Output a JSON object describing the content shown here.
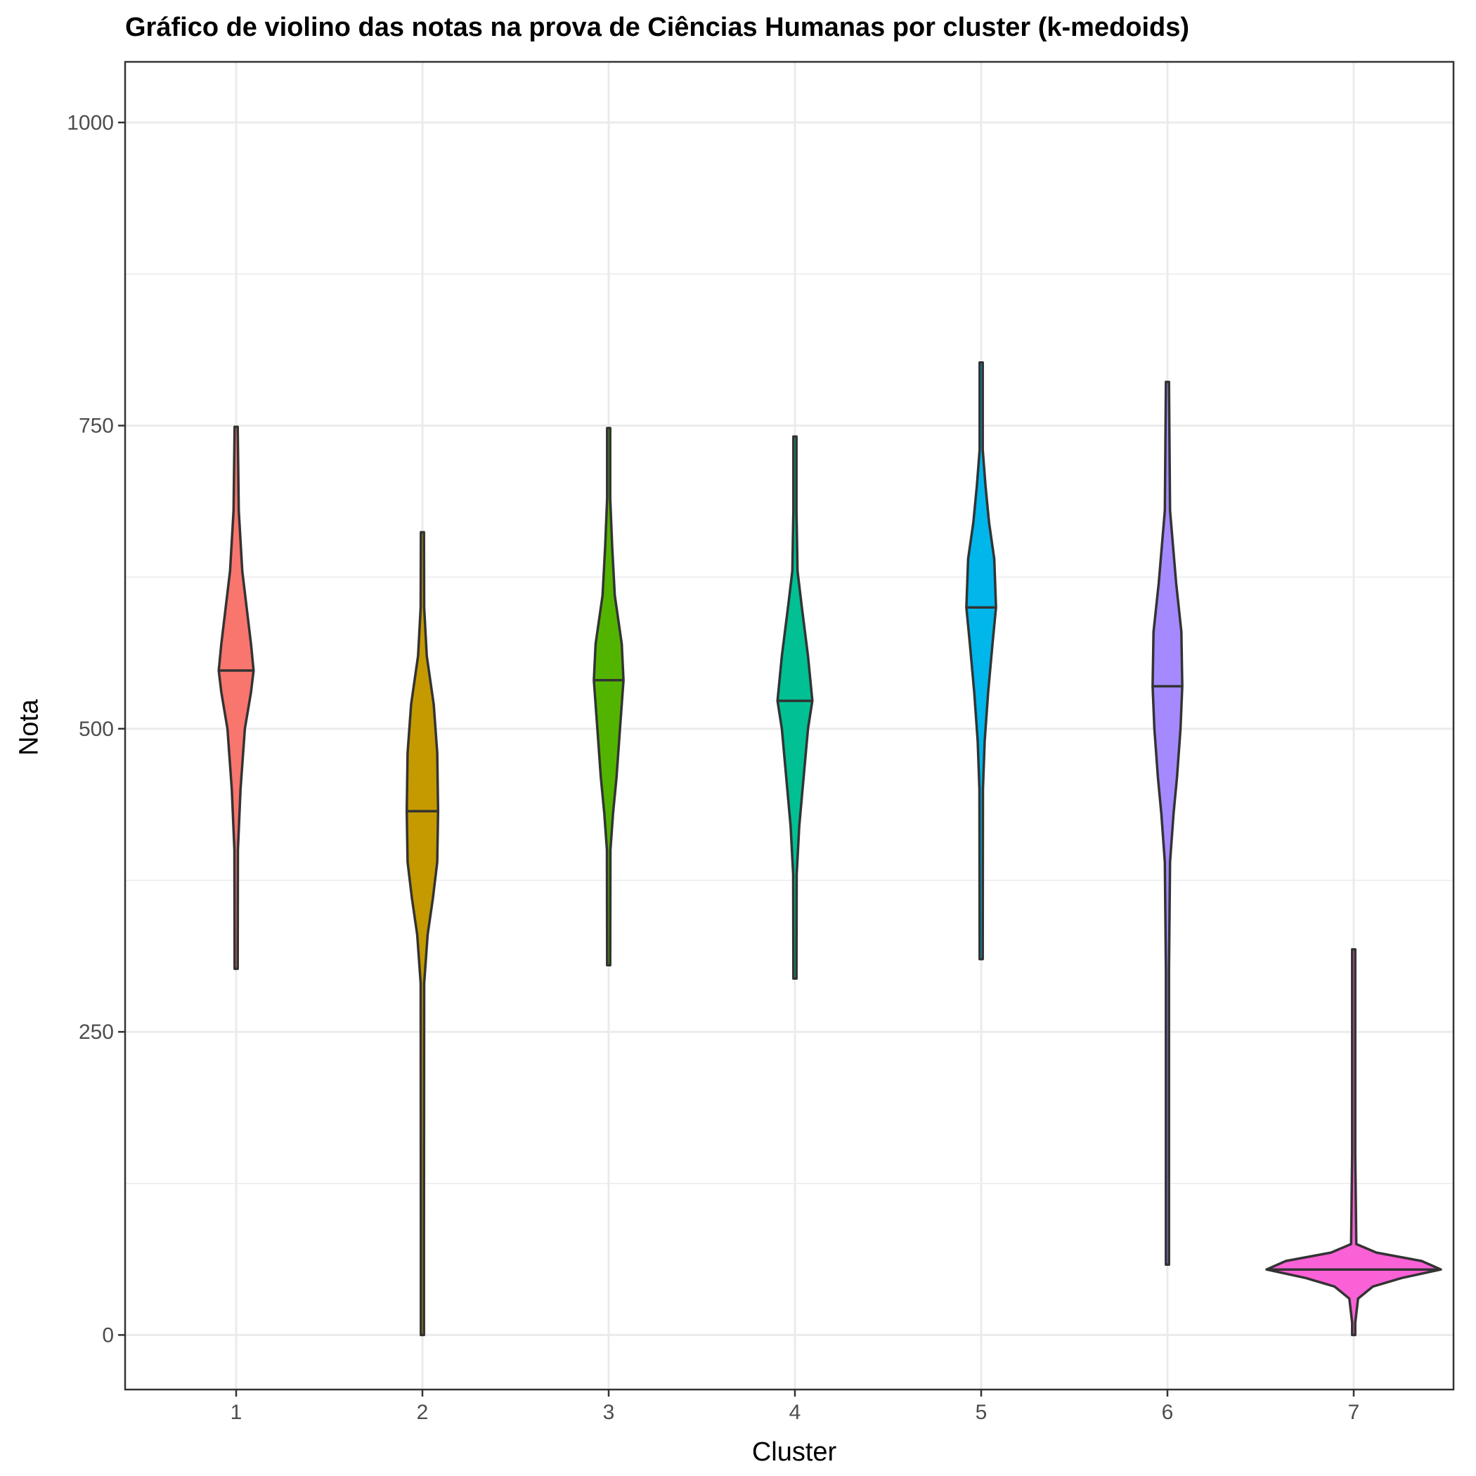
{
  "chart_data": {
    "type": "violin",
    "title": "Gráfico de violino das notas na prova de Ciências Humanas por cluster (k-medoids)",
    "xlabel": "Cluster",
    "ylabel": "Nota",
    "categories": [
      "1",
      "2",
      "3",
      "4",
      "5",
      "6",
      "7"
    ],
    "y_ticks": [
      0,
      250,
      500,
      750,
      1000
    ],
    "y_tick_labels": [
      "0",
      "250",
      "500",
      "750",
      "1000"
    ],
    "ylim": [
      -45,
      1050
    ],
    "grid": true,
    "legend": "none",
    "colors": [
      "#F8766D",
      "#C49A00",
      "#53B400",
      "#00C094",
      "#00B6EB",
      "#A58AFF",
      "#FB61D7"
    ],
    "violins": [
      {
        "cluster": "1",
        "min": 302,
        "max": 749,
        "median": 548,
        "density": [
          [
            302,
            0
          ],
          [
            400,
            0.02
          ],
          [
            450,
            0.05
          ],
          [
            500,
            0.1
          ],
          [
            530,
            0.17
          ],
          [
            548,
            0.2
          ],
          [
            570,
            0.17
          ],
          [
            600,
            0.12
          ],
          [
            630,
            0.07
          ],
          [
            680,
            0.03
          ],
          [
            749,
            0
          ]
        ]
      },
      {
        "cluster": "2",
        "min": 0,
        "max": 662,
        "median": 432,
        "density": [
          [
            0,
            0
          ],
          [
            60,
            0.01
          ],
          [
            80,
            0
          ],
          [
            290,
            0.02
          ],
          [
            330,
            0.06
          ],
          [
            360,
            0.12
          ],
          [
            390,
            0.17
          ],
          [
            432,
            0.18
          ],
          [
            480,
            0.17
          ],
          [
            520,
            0.13
          ],
          [
            560,
            0.05
          ],
          [
            600,
            0.02
          ],
          [
            662,
            0
          ]
        ]
      },
      {
        "cluster": "3",
        "min": 305,
        "max": 748,
        "median": 540,
        "density": [
          [
            305,
            0
          ],
          [
            400,
            0.02
          ],
          [
            430,
            0.05
          ],
          [
            460,
            0.09
          ],
          [
            500,
            0.13
          ],
          [
            540,
            0.17
          ],
          [
            570,
            0.15
          ],
          [
            610,
            0.07
          ],
          [
            650,
            0.04
          ],
          [
            690,
            0.01
          ],
          [
            748,
            0
          ]
        ]
      },
      {
        "cluster": "4",
        "min": 294,
        "max": 741,
        "median": 523,
        "density": [
          [
            294,
            0
          ],
          [
            380,
            0.02
          ],
          [
            420,
            0.05
          ],
          [
            460,
            0.1
          ],
          [
            500,
            0.15
          ],
          [
            523,
            0.2
          ],
          [
            560,
            0.15
          ],
          [
            600,
            0.08
          ],
          [
            630,
            0.03
          ],
          [
            680,
            0.01
          ],
          [
            741,
            0
          ]
        ]
      },
      {
        "cluster": "5",
        "min": 310,
        "max": 802,
        "median": 600,
        "density": [
          [
            310,
            0
          ],
          [
            450,
            0.02
          ],
          [
            490,
            0.04
          ],
          [
            530,
            0.08
          ],
          [
            570,
            0.13
          ],
          [
            600,
            0.17
          ],
          [
            640,
            0.15
          ],
          [
            670,
            0.09
          ],
          [
            700,
            0.05
          ],
          [
            730,
            0.01
          ],
          [
            802,
            0
          ]
        ]
      },
      {
        "cluster": "6",
        "min": 58,
        "max": 786,
        "median": 535,
        "density": [
          [
            58,
            0
          ],
          [
            150,
            0.01
          ],
          [
            300,
            0.01
          ],
          [
            390,
            0.03
          ],
          [
            430,
            0.07
          ],
          [
            460,
            0.11
          ],
          [
            500,
            0.15
          ],
          [
            535,
            0.17
          ],
          [
            580,
            0.16
          ],
          [
            620,
            0.1
          ],
          [
            680,
            0.03
          ],
          [
            786,
            0
          ]
        ]
      },
      {
        "cluster": "7",
        "min": 0,
        "max": 318,
        "median": 54,
        "density": [
          [
            0,
            0
          ],
          [
            10,
            0.01
          ],
          [
            30,
            0.05
          ],
          [
            40,
            0.22
          ],
          [
            47,
            0.55
          ],
          [
            54,
            1.0
          ],
          [
            61,
            0.78
          ],
          [
            68,
            0.26
          ],
          [
            75,
            0.03
          ],
          [
            150,
            0.005
          ],
          [
            318,
            0
          ]
        ]
      }
    ]
  }
}
